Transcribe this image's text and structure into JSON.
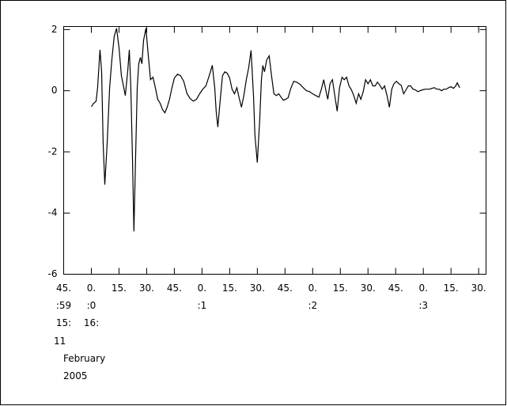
{
  "chart_data": {
    "type": "line",
    "x": [
      15.0,
      16.3,
      17.6,
      18.4,
      19.7,
      20.6,
      21.4,
      22.3,
      23.6,
      24.9,
      26.1,
      27.4,
      28.7,
      30.0,
      31.3,
      32.6,
      33.4,
      34.7,
      35.6,
      36.4,
      37.3,
      38.1,
      39.0,
      39.9,
      40.7,
      41.6,
      42.4,
      43.3,
      44.6,
      45.9,
      47.1,
      48.4,
      49.7,
      51.0,
      52.3,
      53.6,
      54.9,
      56.1,
      57.4,
      58.7,
      60.0,
      61.7,
      63.4,
      65.1,
      66.9,
      68.6,
      70.3,
      72.0,
      73.7,
      75.4,
      77.1,
      78.9,
      80.6,
      81.9,
      82.7,
      83.6,
      84.9,
      86.1,
      87.4,
      88.7,
      90.0,
      91.3,
      92.6,
      93.9,
      95.1,
      96.4,
      97.7,
      99.0,
      100.3,
      101.6,
      102.9,
      103.7,
      105.0,
      106.3,
      107.2,
      108.0,
      108.9,
      110.1,
      111.4,
      112.7,
      114.0,
      115.3,
      116.6,
      117.9,
      119.1,
      120.4,
      121.7,
      123.0,
      124.7,
      126.4,
      128.1,
      129.9,
      131.6,
      133.3,
      135.0,
      136.7,
      138.4,
      139.7,
      141.0,
      142.3,
      143.2,
      144.4,
      145.7,
      147.0,
      148.3,
      149.6,
      150.9,
      152.1,
      153.4,
      154.7,
      156.0,
      157.3,
      158.6,
      159.9,
      161.1,
      162.4,
      163.7,
      165.0,
      166.3,
      167.6,
      168.9,
      170.1,
      171.4,
      172.7,
      174.0,
      175.3,
      176.6,
      177.9,
      179.1,
      180.4,
      181.7,
      183.0,
      184.3,
      185.6,
      186.9,
      188.1,
      189.4,
      190.7,
      192.0,
      193.3,
      194.6,
      195.9,
      197.1,
      198.4,
      199.7,
      201.0,
      202.3,
      203.6,
      204.9,
      206.1,
      207.4,
      208.7,
      210.0,
      211.3,
      212.6,
      213.4,
      214.7
    ],
    "series": [
      {
        "color": "#000000",
        "values": [
          -0.52,
          -0.41,
          -0.34,
          0.1,
          1.34,
          0.62,
          -1.71,
          -3.07,
          -1.71,
          0.1,
          1.01,
          1.78,
          2.04,
          1.4,
          0.49,
          0.1,
          -0.16,
          0.62,
          1.34,
          0.1,
          -2.22,
          -4.6,
          -2.22,
          0.1,
          0.88,
          1.09,
          0.88,
          1.65,
          2.04,
          1.14,
          0.36,
          0.44,
          0.1,
          -0.28,
          -0.41,
          -0.62,
          -0.72,
          -0.54,
          -0.28,
          0.1,
          0.41,
          0.54,
          0.49,
          0.31,
          -0.1,
          -0.26,
          -0.34,
          -0.28,
          -0.1,
          0.05,
          0.16,
          0.49,
          0.83,
          0.1,
          -0.67,
          -1.19,
          -0.28,
          0.49,
          0.62,
          0.57,
          0.41,
          0.05,
          -0.1,
          0.1,
          -0.23,
          -0.54,
          -0.16,
          0.36,
          0.75,
          1.32,
          -0.16,
          -1.45,
          -2.35,
          -0.93,
          0.36,
          0.83,
          0.62,
          1.01,
          1.14,
          0.49,
          -0.1,
          -0.16,
          -0.1,
          -0.21,
          -0.31,
          -0.28,
          -0.23,
          0.05,
          0.31,
          0.28,
          0.21,
          0.1,
          0.0,
          -0.03,
          -0.1,
          -0.16,
          -0.21,
          0.05,
          0.36,
          -0.03,
          -0.28,
          0.23,
          0.36,
          -0.16,
          -0.67,
          0.1,
          0.44,
          0.36,
          0.44,
          0.16,
          0.03,
          -0.16,
          -0.41,
          -0.1,
          -0.28,
          -0.03,
          0.36,
          0.23,
          0.36,
          0.16,
          0.16,
          0.28,
          0.18,
          0.05,
          0.16,
          -0.16,
          -0.54,
          0.05,
          0.23,
          0.31,
          0.23,
          0.18,
          -0.1,
          0.03,
          0.16,
          0.16,
          0.05,
          0.03,
          -0.03,
          0.0,
          0.03,
          0.05,
          0.05,
          0.05,
          0.08,
          0.1,
          0.05,
          0.05,
          0.0,
          0.05,
          0.05,
          0.1,
          0.13,
          0.08,
          0.16,
          0.26,
          0.1
        ]
      }
    ],
    "xlim": [
      0,
      229
    ],
    "ylim": [
      -6,
      2.1
    ],
    "xticks": [
      {
        "value": 0,
        "label": "45."
      },
      {
        "value": 15,
        "label": "0."
      },
      {
        "value": 30,
        "label": "15."
      },
      {
        "value": 45,
        "label": "30."
      },
      {
        "value": 60,
        "label": "45."
      },
      {
        "value": 75,
        "label": "0."
      },
      {
        "value": 90,
        "label": "15."
      },
      {
        "value": 105,
        "label": "30."
      },
      {
        "value": 120,
        "label": "45."
      },
      {
        "value": 135,
        "label": "0."
      },
      {
        "value": 150,
        "label": "15."
      },
      {
        "value": 165,
        "label": "30."
      },
      {
        "value": 180,
        "label": "45."
      },
      {
        "value": 195,
        "label": "0."
      },
      {
        "value": 210,
        "label": "15."
      },
      {
        "value": 225,
        "label": "30."
      }
    ],
    "x_minute_labels": [
      {
        "value": 0,
        "label": ":59"
      },
      {
        "value": 15,
        "label": ":0"
      },
      {
        "value": 75,
        "label": ":1"
      },
      {
        "value": 135,
        "label": ":2"
      },
      {
        "value": 195,
        "label": ":3"
      }
    ],
    "x_hour_labels": [
      {
        "value": 0,
        "label": "15:"
      },
      {
        "value": 15,
        "label": "16:"
      }
    ],
    "x_date_labels": [
      "11",
      "February",
      "2005"
    ],
    "yticks": [
      -6,
      -4,
      -2,
      0,
      2
    ]
  }
}
